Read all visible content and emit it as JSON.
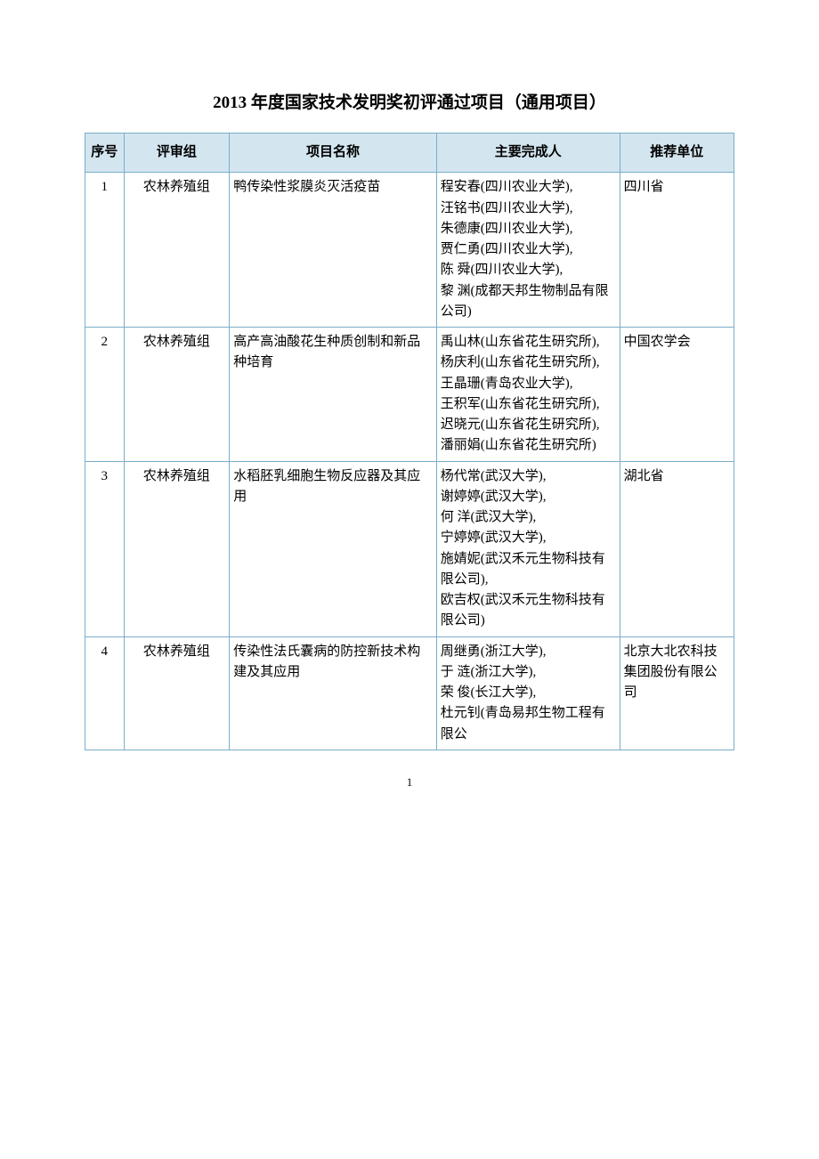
{
  "title": "2013 年度国家技术发明奖初评通过项目（通用项目）",
  "headers": {
    "idx": "序号",
    "group": "评审组",
    "name": "项目名称",
    "people": "主要完成人",
    "rec": "推荐单位"
  },
  "rows": [
    {
      "idx": "1",
      "group": "农林养殖组",
      "name": "鸭传染性浆膜炎灭活疫苗",
      "people": "程安春(四川农业大学),\n汪铭书(四川农业大学),\n朱德康(四川农业大学),\n贾仁勇(四川农业大学),\n陈  舜(四川农业大学),\n黎  渊(成都天邦生物制品有限公司)",
      "rec": "四川省"
    },
    {
      "idx": "2",
      "group": "农林养殖组",
      "name": "高产高油酸花生种质创制和新品种培育",
      "people": "禹山林(山东省花生研究所),\n杨庆利(山东省花生研究所),\n王晶珊(青岛农业大学),\n王积军(山东省花生研究所),\n迟晓元(山东省花生研究所),\n潘丽娟(山东省花生研究所)",
      "rec": "中国农学会"
    },
    {
      "idx": "3",
      "group": "农林养殖组",
      "name": "水稻胚乳细胞生物反应器及其应用",
      "people": "杨代常(武汉大学),\n谢婷婷(武汉大学),\n何  洋(武汉大学),\n宁婷婷(武汉大学),\n施婧妮(武汉禾元生物科技有限公司),\n欧吉权(武汉禾元生物科技有限公司)",
      "rec": "湖北省"
    },
    {
      "idx": "4",
      "group": "农林养殖组",
      "name": "传染性法氏囊病的防控新技术构建及其应用",
      "people": "周继勇(浙江大学),\n于  涟(浙江大学),\n荣  俊(长江大学),\n杜元钊(青岛易邦生物工程有限公",
      "rec": "北京大北农科技集团股份有限公司"
    }
  ],
  "page_number": "1"
}
